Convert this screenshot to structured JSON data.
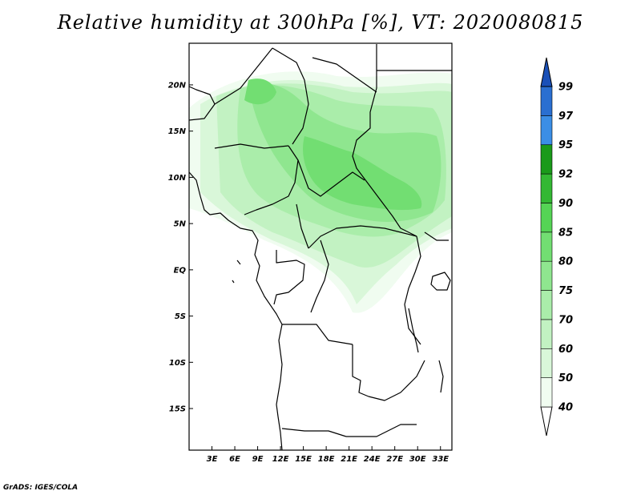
{
  "title": "Relative humidity at 300hPa [%], VT: 2020080815",
  "credit": "GrADS: IGES/COLA",
  "map": {
    "lat_labels": [
      "20N",
      "15N",
      "10N",
      "5N",
      "EQ",
      "5S",
      "10S",
      "15S"
    ],
    "lat_values": [
      20,
      15,
      10,
      5,
      0,
      -5,
      -10,
      -15
    ],
    "lon_labels": [
      "3E",
      "6E",
      "9E",
      "12E",
      "15E",
      "18E",
      "21E",
      "24E",
      "27E",
      "30E",
      "33E"
    ],
    "lon_values": [
      3,
      6,
      9,
      12,
      15,
      18,
      21,
      24,
      27,
      30,
      33
    ],
    "lon_range": [
      0,
      34.5
    ],
    "lat_range": [
      -19.5,
      24.5
    ]
  },
  "colorbar": {
    "labels": [
      "40",
      "50",
      "60",
      "70",
      "75",
      "80",
      "85",
      "90",
      "92",
      "95",
      "97",
      "99"
    ],
    "colors": [
      "#f0fcf0",
      "#d9f7d9",
      "#c2f2c2",
      "#aaedaa",
      "#8fe68f",
      "#72de72",
      "#55d455",
      "#33b833",
      "#1a9a1a",
      "#3b8ee6",
      "#2a6fd1",
      "#1a50b8"
    ]
  }
}
